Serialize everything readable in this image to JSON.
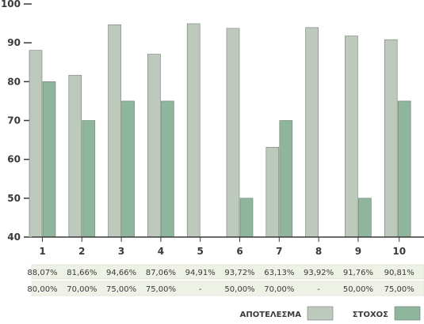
{
  "chart_data": {
    "type": "bar",
    "categories": [
      "1",
      "2",
      "3",
      "4",
      "5",
      "6",
      "7",
      "8",
      "9",
      "10"
    ],
    "series": [
      {
        "name": "ΑΠΟΤΕΛΕΣΜΑ",
        "color": "#bec9be",
        "values": [
          88.07,
          81.66,
          94.66,
          87.06,
          94.91,
          93.72,
          63.13,
          93.92,
          91.76,
          90.81
        ],
        "labels": [
          "88,07%",
          "81,66%",
          "94,66%",
          "87,06%",
          "94,91%",
          "93,72%",
          "63,13%",
          "93,92%",
          "91,76%",
          "90,81%"
        ]
      },
      {
        "name": "ΣΤΟΧΟΣ",
        "color": "#8fb59c",
        "values": [
          80,
          70,
          75,
          75,
          null,
          50,
          70,
          null,
          50,
          75
        ],
        "labels": [
          "80,00%",
          "70,00%",
          "75,00%",
          "75,00%",
          "-",
          "50,00%",
          "70,00%",
          "-",
          "50,00%",
          "75,00%"
        ]
      }
    ],
    "yticks": [
      40,
      50,
      60,
      70,
      80,
      90,
      100
    ],
    "ylim": [
      40,
      100
    ],
    "grid": false,
    "legend_position": "bottom-right",
    "title": "",
    "xlabel": "",
    "ylabel": ""
  },
  "colors": {
    "axis": "#3a3a3a",
    "table_row_bg": "#eef2e6",
    "table_border": "#e3e8da"
  }
}
